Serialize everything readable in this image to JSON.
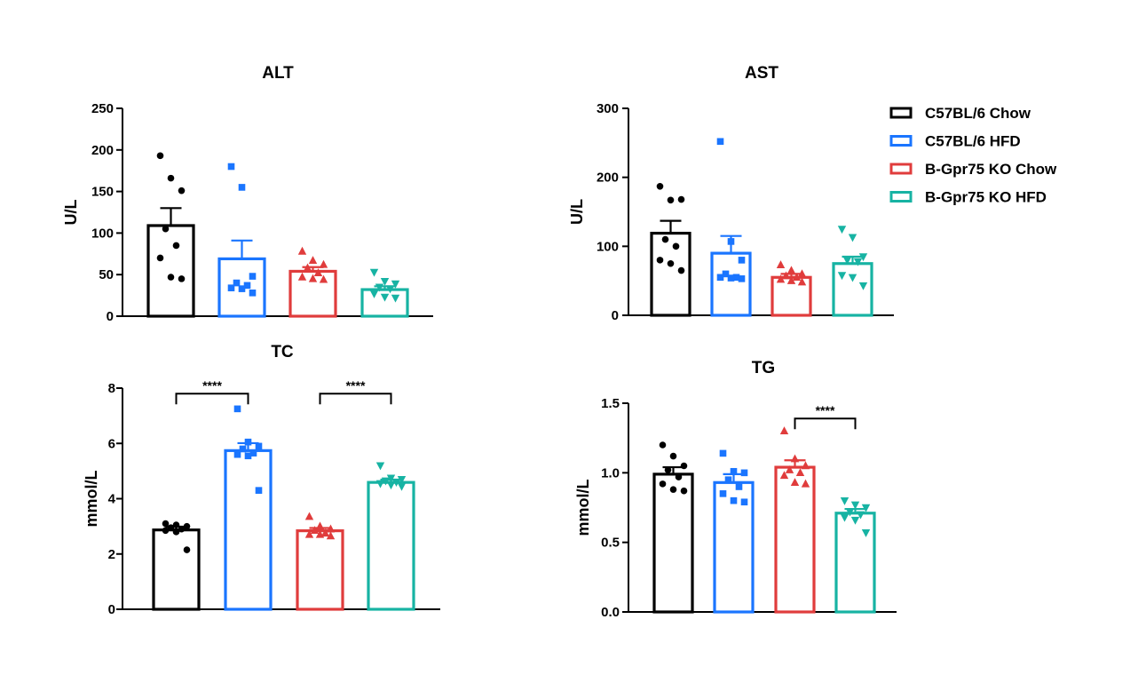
{
  "legend": [
    {
      "label": "C57BL/6 Chow",
      "color": "#000000",
      "marker": "circle"
    },
    {
      "label": "C57BL/6 HFD",
      "color": "#1a75ff",
      "marker": "square"
    },
    {
      "label": "B-Gpr75 KO Chow",
      "color": "#e03c3c",
      "marker": "triangle-up"
    },
    {
      "label": "B-Gpr75 KO HFD",
      "color": "#17b3a3",
      "marker": "triangle-down"
    }
  ],
  "chart_data": [
    {
      "type": "bar",
      "title": "ALT",
      "ylabel": "U/L",
      "ylim": [
        0,
        250
      ],
      "yticks": [
        "0",
        "50",
        "100",
        "150",
        "200",
        "250"
      ],
      "categories": [
        "C57BL/6 Chow",
        "C57BL/6 HFD",
        "B-Gpr75 KO Chow",
        "B-Gpr75 KO HFD"
      ],
      "values": [
        109,
        69,
        54,
        32
      ],
      "sem": [
        21,
        22,
        5,
        4
      ],
      "points": [
        [
          193,
          166,
          151,
          105,
          85,
          70,
          47,
          45
        ],
        [
          180,
          155,
          48,
          40,
          37,
          34,
          33,
          28
        ],
        [
          78,
          67,
          62,
          58,
          52,
          47,
          45,
          44
        ],
        [
          53,
          42,
          39,
          35,
          33,
          27,
          23,
          22
        ]
      ],
      "significance": []
    },
    {
      "type": "bar",
      "title": "AST",
      "ylabel": "U/L",
      "ylim": [
        0,
        300
      ],
      "yticks": [
        "0",
        "100",
        "200",
        "300"
      ],
      "categories": [
        "C57BL/6 Chow",
        "C57BL/6 HFD",
        "B-Gpr75 KO Chow",
        "B-Gpr75 KO HFD"
      ],
      "values": [
        119,
        90,
        55,
        75
      ],
      "sem": [
        18,
        25,
        5,
        10
      ],
      "points": [
        [
          187,
          167,
          168,
          110,
          100,
          80,
          75,
          65
        ],
        [
          252,
          107,
          80,
          60,
          55,
          55,
          54,
          53
        ],
        [
          73,
          65,
          60,
          57,
          55,
          52,
          50,
          48
        ],
        [
          125,
          113,
          85,
          80,
          78,
          58,
          55,
          43
        ]
      ],
      "significance": []
    },
    {
      "type": "bar",
      "title": "TC",
      "ylabel": "mmol/L",
      "ylim": [
        0,
        8
      ],
      "yticks": [
        "0",
        "2",
        "4",
        "6",
        "8"
      ],
      "categories": [
        "C57BL/6 Chow",
        "C57BL/6 HFD",
        "B-Gpr75 KO Chow",
        "B-Gpr75 KO HFD"
      ],
      "values": [
        2.87,
        5.74,
        2.84,
        4.59
      ],
      "sem": [
        0.12,
        0.27,
        0.1,
        0.1
      ],
      "points": [
        [
          3.1,
          3.05,
          3.0,
          2.95,
          2.9,
          2.85,
          2.8,
          2.15
        ],
        [
          7.25,
          6.05,
          5.9,
          5.8,
          5.65,
          5.6,
          5.55,
          4.3
        ],
        [
          3.35,
          3.0,
          2.9,
          2.85,
          2.75,
          2.7,
          2.7,
          2.65
        ],
        [
          5.2,
          4.75,
          4.7,
          4.65,
          4.6,
          4.55,
          4.5,
          4.45
        ]
      ],
      "significance": [
        {
          "from": 0,
          "to": 1,
          "label": "****",
          "y": 7.8
        },
        {
          "from": 2,
          "to": 3,
          "label": "****",
          "y": 7.8
        }
      ]
    },
    {
      "type": "bar",
      "title": "TG",
      "ylabel": "mmol/L",
      "ylim": [
        0,
        1.5
      ],
      "yticks": [
        "0.0",
        "0.5",
        "1.0",
        "1.5"
      ],
      "categories": [
        "C57BL/6 Chow",
        "C57BL/6 HFD",
        "B-Gpr75 KO Chow",
        "B-Gpr75 KO HFD"
      ],
      "values": [
        0.99,
        0.93,
        1.04,
        0.71
      ],
      "sem": [
        0.05,
        0.06,
        0.05,
        0.03
      ],
      "points": [
        [
          1.2,
          1.12,
          1.05,
          1.02,
          0.97,
          0.92,
          0.88,
          0.87
        ],
        [
          1.14,
          1.01,
          1.0,
          0.95,
          0.9,
          0.85,
          0.8,
          0.79
        ],
        [
          1.3,
          1.1,
          1.05,
          1.02,
          1.0,
          0.98,
          0.93,
          0.92
        ],
        [
          0.8,
          0.77,
          0.75,
          0.72,
          0.7,
          0.68,
          0.66,
          0.57
        ]
      ],
      "significance": [
        {
          "from": 2,
          "to": 3,
          "label": "****",
          "y": 1.39
        }
      ]
    }
  ]
}
